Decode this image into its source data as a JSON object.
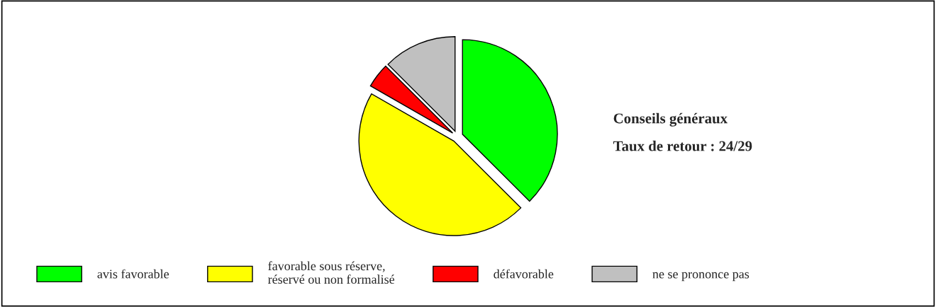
{
  "chart_data": {
    "type": "pie",
    "title": "Conseils généraux",
    "subtitle": "Taux de retour : 24/29",
    "categories": [
      "avis favorable",
      "favorable sous réserve,\nréservé ou non formalisé",
      "défavorable",
      "ne se prononce pas"
    ],
    "values": [
      37.5,
      45.8,
      4.2,
      12.5
    ],
    "colors": [
      "#00ff00",
      "#ffff00",
      "#ff0000",
      "#c0c0c0"
    ],
    "legend": "bottom"
  }
}
